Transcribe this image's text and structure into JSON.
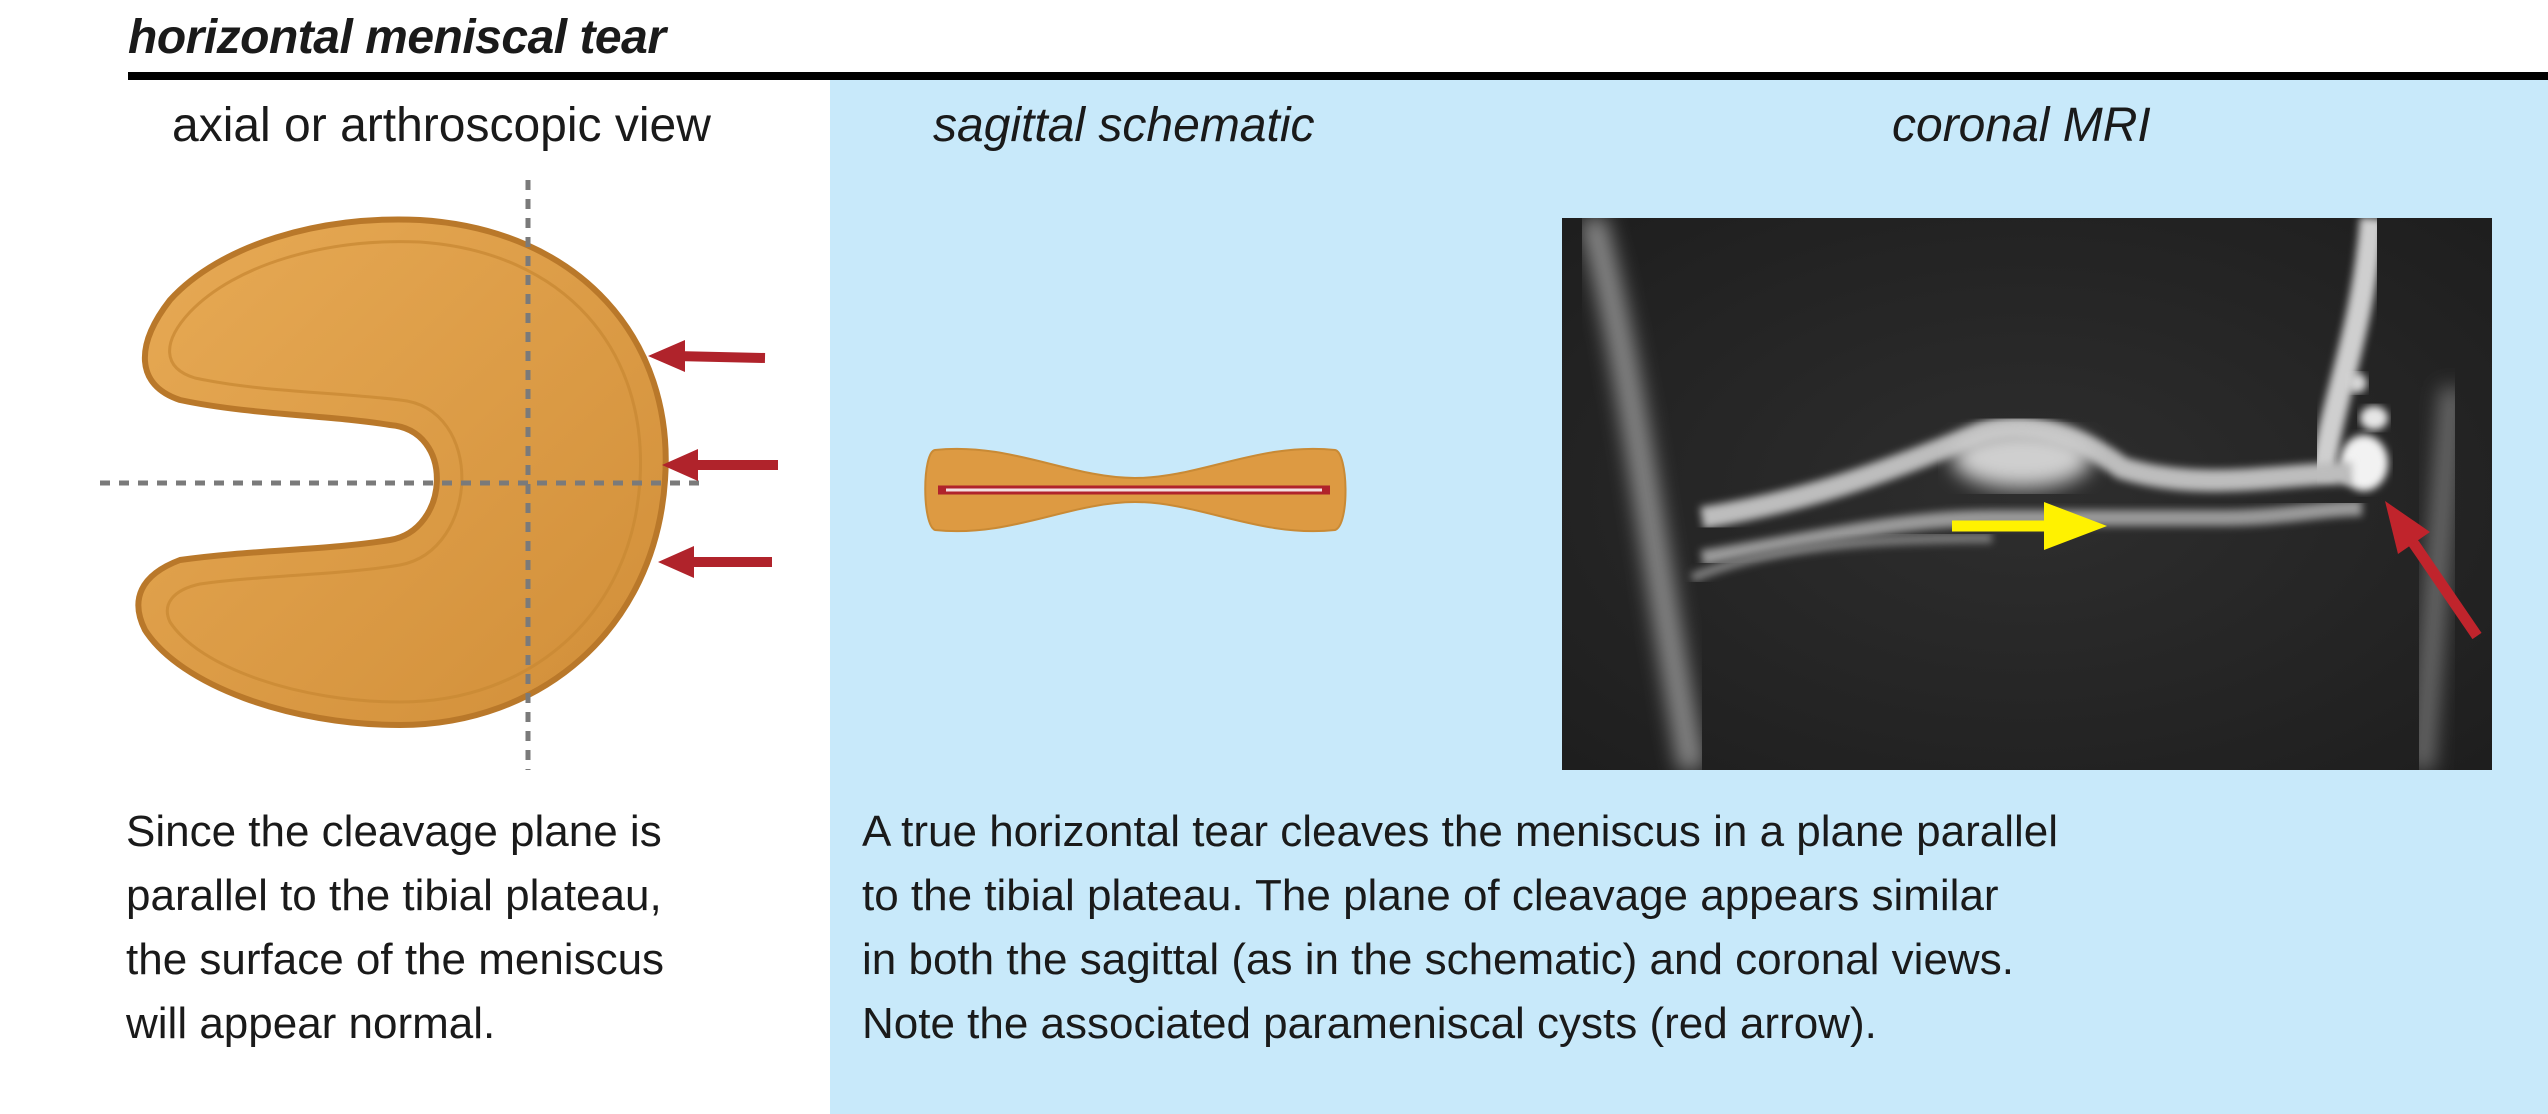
{
  "title": "horizontal meniscal tear",
  "panels": {
    "axial": {
      "heading": "axial or arthroscopic view",
      "caption_lines": [
        "Since the cleavage plane is",
        "parallel to the tibial plateau,",
        "the surface of the meniscus",
        "will appear normal."
      ]
    },
    "sagittal": {
      "heading": "sagittal schematic"
    },
    "coronal": {
      "heading": "coronal MRI"
    },
    "main_caption_lines": [
      "A true horizontal tear cleaves the meniscus in a plane parallel",
      "to the tibial plateau. The plane of cleavage appears similar",
      "in both the sagittal (as in the schematic) and coronal views.",
      "Note the associated parameniscal cysts (red arrow)."
    ]
  },
  "colors": {
    "meniscus_fill": "#dd9a42",
    "meniscus_edge": "#b9782a",
    "tear_red": "#b0232b",
    "panel_blue": "#c8e9fa",
    "arrow_yellow": "#fff200",
    "arrow_red": "#c0242c"
  }
}
